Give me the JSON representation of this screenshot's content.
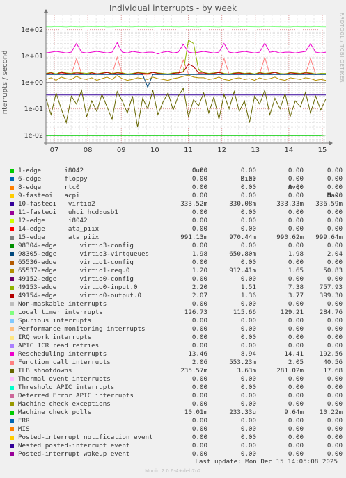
{
  "title": "Individual interrupts - by week",
  "side_credit": "RRDTOOL / TOBI OETIKER",
  "ylabel": "interrupts / second",
  "footer": "Munin 2.0.6-4+deb7u2",
  "last_update": "Last update:  Mon Dec 15 14:05:08 2025",
  "colors": {
    "background": "#f0f0f0",
    "plot_bg": "#ffffff",
    "grid_major": "#e0a0a0",
    "grid_minor": "#e6e6e6",
    "axis": "#777777"
  },
  "legend_header": {
    "cur": "Cur:",
    "min": "Min:",
    "avg": "Avg:",
    "max": "Max:"
  },
  "legend": [
    {
      "name": "1-edge      i8042",
      "cur": "0.00",
      "min": "0.00",
      "avg": "0.00",
      "max": "0.00",
      "color": "#00cc00"
    },
    {
      "name": "6-edge      floppy",
      "cur": "0.00",
      "min": "0.00",
      "avg": "0.00",
      "max": "0.00",
      "color": "#0066b3"
    },
    {
      "name": "8-edge      rtc0",
      "cur": "0.00",
      "min": "0.00",
      "avg": "0.00",
      "max": "0.00",
      "color": "#ff8000"
    },
    {
      "name": "9-fasteoi   acpi",
      "cur": "0.00",
      "min": "0.00",
      "avg": "0.00",
      "max": "0.00",
      "color": "#ffcc00"
    },
    {
      "name": "10-fasteoi   virtio2",
      "cur": "333.52m",
      "min": "330.08m",
      "avg": "333.33m",
      "max": "336.59m",
      "color": "#330099"
    },
    {
      "name": "11-fasteoi   uhci_hcd:usb1",
      "cur": "0.00",
      "min": "0.00",
      "avg": "0.00",
      "max": "0.00",
      "color": "#990099"
    },
    {
      "name": "12-edge      i8042",
      "cur": "0.00",
      "min": "0.00",
      "avg": "0.00",
      "max": "0.00",
      "color": "#ccff00"
    },
    {
      "name": "14-edge      ata_piix",
      "cur": "0.00",
      "min": "0.00",
      "avg": "0.00",
      "max": "0.00",
      "color": "#ff0000"
    },
    {
      "name": "15-edge      ata_piix",
      "cur": "991.13m",
      "min": "970.44m",
      "avg": "990.62m",
      "max": "999.64m",
      "color": "#808080"
    },
    {
      "name": "98304-edge      virtio3-config",
      "cur": "0.00",
      "min": "0.00",
      "avg": "0.00",
      "max": "0.00",
      "color": "#008f00"
    },
    {
      "name": "98305-edge      virtio3-virtqueues",
      "cur": "1.98",
      "min": "650.80m",
      "avg": "1.98",
      "max": "2.04",
      "color": "#00487d"
    },
    {
      "name": "65536-edge      virtio1-config",
      "cur": "0.00",
      "min": "0.00",
      "avg": "0.00",
      "max": "0.00",
      "color": "#b35a00"
    },
    {
      "name": "65537-edge      virtio1-req.0",
      "cur": "1.20",
      "min": "912.41m",
      "avg": "1.65",
      "max": "50.83",
      "color": "#b38f00"
    },
    {
      "name": "49152-edge      virtio0-config",
      "cur": "0.00",
      "min": "0.00",
      "avg": "0.00",
      "max": "0.00",
      "color": "#6b006b"
    },
    {
      "name": "49153-edge      virtio0-input.0",
      "cur": "2.20",
      "min": "1.51",
      "avg": "7.38",
      "max": "757.93",
      "color": "#8fb300"
    },
    {
      "name": "49154-edge      virtio0-output.0",
      "cur": "2.07",
      "min": "1.36",
      "avg": "3.77",
      "max": "399.30",
      "color": "#b30000"
    },
    {
      "name": "Non-maskable interrupts",
      "cur": "0.00",
      "min": "0.00",
      "avg": "0.00",
      "max": "0.00",
      "color": "#bebebe"
    },
    {
      "name": "Local timer interrupts",
      "cur": "126.73",
      "min": "115.66",
      "avg": "129.21",
      "max": "284.76",
      "color": "#80ff80"
    },
    {
      "name": "Spurious interrupts",
      "cur": "0.00",
      "min": "0.00",
      "avg": "0.00",
      "max": "0.00",
      "color": "#80c9ff"
    },
    {
      "name": "Performance monitoring interrupts",
      "cur": "0.00",
      "min": "0.00",
      "avg": "0.00",
      "max": "0.00",
      "color": "#ffc080"
    },
    {
      "name": "IRQ work interrupts",
      "cur": "0.00",
      "min": "0.00",
      "avg": "0.00",
      "max": "0.00",
      "color": "#ffe680"
    },
    {
      "name": "APIC ICR read retries",
      "cur": "0.00",
      "min": "0.00",
      "avg": "0.00",
      "max": "0.00",
      "color": "#aa80ff"
    },
    {
      "name": "Rescheduling interrupts",
      "cur": "13.46",
      "min": "8.94",
      "avg": "14.41",
      "max": "192.56",
      "color": "#ee00cc"
    },
    {
      "name": "Function call interrupts",
      "cur": "2.06",
      "min": "553.23m",
      "avg": "2.05",
      "max": "40.56",
      "color": "#ff8080"
    },
    {
      "name": "TLB shootdowns",
      "cur": "235.57m",
      "min": "3.63m",
      "avg": "281.02m",
      "max": "17.68",
      "color": "#666600"
    },
    {
      "name": "Thermal event interrupts",
      "cur": "0.00",
      "min": "0.00",
      "avg": "0.00",
      "max": "0.00",
      "color": "#ffbfff"
    },
    {
      "name": "Threshold APIC interrupts",
      "cur": "0.00",
      "min": "0.00",
      "avg": "0.00",
      "max": "0.00",
      "color": "#00ffcc"
    },
    {
      "name": "Deferred Error APIC interrupts",
      "cur": "0.00",
      "min": "0.00",
      "avg": "0.00",
      "max": "0.00",
      "color": "#cc6699"
    },
    {
      "name": "Machine check exceptions",
      "cur": "0.00",
      "min": "0.00",
      "avg": "0.00",
      "max": "0.00",
      "color": "#999900"
    },
    {
      "name": "Machine check polls",
      "cur": "10.01m",
      "min": "233.33u",
      "avg": "9.64m",
      "max": "10.22m",
      "color": "#00cc00"
    },
    {
      "name": "ERR",
      "cur": "0.00",
      "min": "0.00",
      "avg": "0.00",
      "max": "0.00",
      "color": "#0066b3"
    },
    {
      "name": "MIS",
      "cur": "0.00",
      "min": "0.00",
      "avg": "0.00",
      "max": "0.00",
      "color": "#ff8000"
    },
    {
      "name": "Posted-interrupt notification event",
      "cur": "0.00",
      "min": "0.00",
      "avg": "0.00",
      "max": "0.00",
      "color": "#ffcc00"
    },
    {
      "name": "Nested posted-interrupt event",
      "cur": "0.00",
      "min": "0.00",
      "avg": "0.00",
      "max": "0.00",
      "color": "#330099"
    },
    {
      "name": "Posted-interrupt wakeup event",
      "cur": "0.00",
      "min": "0.00",
      "avg": "0.00",
      "max": "0.00",
      "color": "#990099"
    }
  ],
  "chart_data": {
    "type": "line",
    "title": "Individual interrupts - by week",
    "ylabel": "interrupts / second",
    "xlabel": "",
    "y_scale": "log",
    "ylim": [
      0.005,
      350
    ],
    "y_ticks": [
      {
        "value": 0.01,
        "label": "1e-02"
      },
      {
        "value": 0.1,
        "label": "1e-01"
      },
      {
        "value": 1,
        "label": "1e+00"
      },
      {
        "value": 10,
        "label": "1e+01"
      },
      {
        "value": 100,
        "label": "1e+02"
      }
    ],
    "x_ticks": [
      "07",
      "08",
      "09",
      "10",
      "11",
      "12",
      "13",
      "14",
      "15"
    ],
    "grid": true,
    "legend_position": "bottom",
    "series": [
      {
        "name": "Local timer interrupts",
        "color": "#80ff80",
        "values": [
          128,
          127,
          130,
          129,
          126,
          131,
          128,
          127,
          132,
          129,
          128,
          130,
          126,
          127,
          129,
          131,
          128,
          127,
          130,
          129,
          128,
          127,
          131,
          129,
          130,
          128,
          127,
          129,
          131,
          128,
          127,
          130,
          129,
          128,
          126,
          131,
          129,
          127,
          128,
          130,
          129,
          128,
          127,
          130,
          131,
          129,
          128,
          127,
          126,
          130,
          128,
          129,
          127,
          131,
          128,
          127
        ]
      },
      {
        "name": "Rescheduling interrupts",
        "color": "#ee00cc",
        "values": [
          13,
          14,
          15,
          14,
          13,
          14,
          30,
          14,
          13,
          14,
          15,
          14,
          13,
          14,
          32,
          14,
          13,
          15,
          14,
          13,
          14,
          14,
          12,
          14,
          15,
          13,
          14,
          28,
          14,
          13,
          14,
          15,
          14,
          13,
          14,
          30,
          14,
          13,
          14,
          15,
          14,
          13,
          14,
          31,
          14,
          15,
          13,
          14,
          14,
          13,
          14,
          15,
          29,
          14,
          13,
          14
        ]
      },
      {
        "name": "Function call interrupts",
        "color": "#ff8080",
        "values": [
          2,
          2.1,
          2,
          2.2,
          2.1,
          2,
          8,
          2.1,
          2,
          2.1,
          2.2,
          2,
          2.1,
          2,
          9,
          2.1,
          2,
          2.2,
          2.1,
          2,
          2,
          2.1,
          2,
          2.2,
          2,
          2.1,
          2,
          7,
          2.1,
          2,
          2.2,
          2.1,
          2,
          2.1,
          2,
          8,
          2.1,
          2,
          2.2,
          2.1,
          2,
          2,
          2.1,
          9,
          2,
          2.1,
          2,
          2.2,
          2.1,
          2,
          2,
          2.1,
          8,
          2.1,
          2,
          2.1
        ]
      },
      {
        "name": "49153-edge virtio0-input.0",
        "color": "#8fb300",
        "values": [
          2.2,
          2.4,
          2.1,
          2.6,
          2.3,
          2.2,
          2.5,
          2.3,
          2.2,
          2.4,
          2.1,
          2.3,
          2.5,
          2.2,
          2.4,
          2.3,
          2.1,
          2.2,
          2.4,
          2.3,
          2.2,
          2.5,
          2.3,
          2.2,
          2.1,
          2.3,
          2.4,
          2.6,
          40,
          30,
          3,
          2.4,
          2.2,
          2.3,
          2.5,
          2.2,
          2.1,
          2.3,
          2.4,
          2.2,
          2.3,
          2.1,
          2.4,
          2.2,
          2.3,
          2.5,
          2.2,
          2.1,
          2.4,
          2.3,
          2.2,
          2.4,
          2.3,
          2.1,
          2.2,
          2.2
        ]
      },
      {
        "name": "49154-edge virtio0-output.0",
        "color": "#b30000",
        "values": [
          2.1,
          2.3,
          2.0,
          2.4,
          2.2,
          2.1,
          2.3,
          2.2,
          2.0,
          2.3,
          2.1,
          2.2,
          2.4,
          2.1,
          2.3,
          2.2,
          2.0,
          2.1,
          2.3,
          2.2,
          2.1,
          2.4,
          2.2,
          2.1,
          2.0,
          2.2,
          2.3,
          2.5,
          5,
          4,
          2.3,
          2.3,
          2.1,
          2.2,
          2.4,
          2.1,
          2.0,
          2.2,
          2.3,
          2.1,
          2.2,
          2.0,
          2.3,
          2.1,
          2.2,
          2.4,
          2.1,
          2.0,
          2.3,
          2.2,
          2.1,
          2.3,
          2.2,
          2.0,
          2.1,
          2.07
        ]
      },
      {
        "name": "98305-edge virtio3-virtqueues",
        "color": "#00487d",
        "values": [
          1.98,
          1.98,
          1.98,
          1.99,
          1.97,
          1.98,
          1.98,
          1.98,
          1.98,
          1.98,
          1.99,
          1.98,
          1.98,
          1.98,
          1.97,
          1.98,
          1.98,
          1.98,
          1.98,
          1.98,
          0.65,
          1.98,
          1.98,
          1.98,
          1.98,
          1.98,
          1.98,
          1.98,
          1.98,
          1.98,
          1.98,
          1.98,
          1.98,
          1.98,
          1.98,
          1.98,
          1.98,
          1.98,
          1.98,
          1.98,
          1.98,
          1.98,
          1.98,
          1.98,
          1.98,
          1.98,
          1.98,
          1.98,
          1.98,
          1.98,
          1.98,
          1.98,
          1.98,
          1.98,
          1.98,
          1.98
        ]
      },
      {
        "name": "65537-edge virtio1-req.0",
        "color": "#b38f00",
        "values": [
          1.3,
          1.5,
          1.2,
          1.6,
          1.4,
          1.3,
          1.7,
          1.4,
          1.3,
          1.5,
          1.2,
          1.4,
          1.6,
          1.3,
          1.8,
          1.4,
          1.2,
          1.3,
          1.5,
          1.4,
          1.3,
          1.6,
          1.4,
          1.3,
          1.2,
          1.4,
          1.5,
          1.7,
          1.9,
          1.6,
          1.5,
          1.5,
          1.3,
          1.4,
          1.6,
          1.3,
          1.2,
          1.4,
          1.5,
          1.3,
          1.4,
          1.2,
          1.5,
          1.3,
          1.4,
          1.6,
          1.3,
          1.2,
          1.5,
          1.4,
          1.3,
          1.5,
          1.4,
          1.2,
          1.3,
          1.2
        ]
      },
      {
        "name": "15-edge ata_piix",
        "color": "#808080",
        "values": [
          0.99,
          0.99,
          0.99,
          0.99,
          0.99,
          0.99,
          0.99,
          0.99,
          0.99,
          0.99,
          0.99,
          0.99,
          0.99,
          0.99,
          0.99,
          0.99,
          0.99,
          0.99,
          0.99,
          0.99,
          0.99,
          0.99,
          0.99,
          0.99,
          0.99,
          0.99,
          0.99,
          0.99,
          0.99,
          0.99,
          0.99,
          0.99,
          0.99,
          0.99,
          0.99,
          0.99,
          0.99,
          0.99,
          0.99,
          0.99,
          0.99,
          0.99,
          0.99,
          0.99,
          0.99,
          0.99,
          0.99,
          0.99,
          0.99,
          0.99,
          0.99,
          0.99,
          0.99,
          0.99,
          0.99,
          0.99
        ]
      },
      {
        "name": "10-fasteoi virtio2",
        "color": "#330099",
        "values": [
          0.333,
          0.333,
          0.333,
          0.333,
          0.333,
          0.333,
          0.333,
          0.333,
          0.333,
          0.333,
          0.333,
          0.333,
          0.333,
          0.333,
          0.333,
          0.333,
          0.333,
          0.333,
          0.333,
          0.333,
          0.333,
          0.333,
          0.333,
          0.333,
          0.333,
          0.333,
          0.333,
          0.333,
          0.333,
          0.333,
          0.333,
          0.333,
          0.333,
          0.333,
          0.333,
          0.333,
          0.333,
          0.333,
          0.333,
          0.333,
          0.333,
          0.333,
          0.333,
          0.333,
          0.333,
          0.333,
          0.333,
          0.333,
          0.333,
          0.333,
          0.333,
          0.333,
          0.333,
          0.333,
          0.333,
          0.333
        ]
      },
      {
        "name": "TLB shootdowns",
        "color": "#666600",
        "values": [
          0.25,
          0.06,
          0.4,
          0.1,
          0.03,
          0.3,
          0.15,
          0.5,
          0.05,
          0.2,
          0.08,
          0.35,
          0.12,
          0.04,
          0.45,
          0.2,
          0.07,
          0.3,
          0.02,
          0.25,
          0.1,
          0.5,
          0.06,
          0.18,
          0.4,
          0.09,
          0.3,
          0.6,
          0.05,
          0.22,
          0.13,
          0.4,
          0.07,
          0.28,
          0.04,
          0.35,
          0.1,
          0.45,
          0.08,
          0.2,
          0.03,
          0.3,
          0.15,
          0.5,
          0.06,
          0.25,
          0.1,
          0.38,
          0.05,
          0.2,
          0.12,
          0.42,
          0.07,
          0.3,
          0.09,
          0.236
        ]
      },
      {
        "name": "Machine check polls",
        "color": "#00cc00",
        "values": [
          0.0096,
          0.0096,
          0.0096,
          0.0096,
          0.0096,
          0.0096,
          0.0096,
          0.0096,
          0.0096,
          0.0096,
          0.0096,
          0.0096,
          0.0096,
          0.0096,
          0.0096,
          0.0096,
          0.0096,
          0.0096,
          0.0096,
          0.0096,
          0.0096,
          0.0096,
          0.0096,
          0.0096,
          0.0096,
          0.0096,
          0.0096,
          0.0096,
          0.0096,
          0.0096,
          0.0096,
          0.0096,
          0.0096,
          0.0096,
          0.0096,
          0.0096,
          0.0096,
          0.0096,
          0.0096,
          0.0096,
          0.0096,
          0.0096,
          0.0096,
          0.0096,
          0.0096,
          0.0096,
          0.0096,
          0.0096,
          0.0096,
          0.0096,
          0.0096,
          0.0096,
          0.0096,
          0.0096,
          0.0096,
          0.01
        ]
      }
    ]
  }
}
